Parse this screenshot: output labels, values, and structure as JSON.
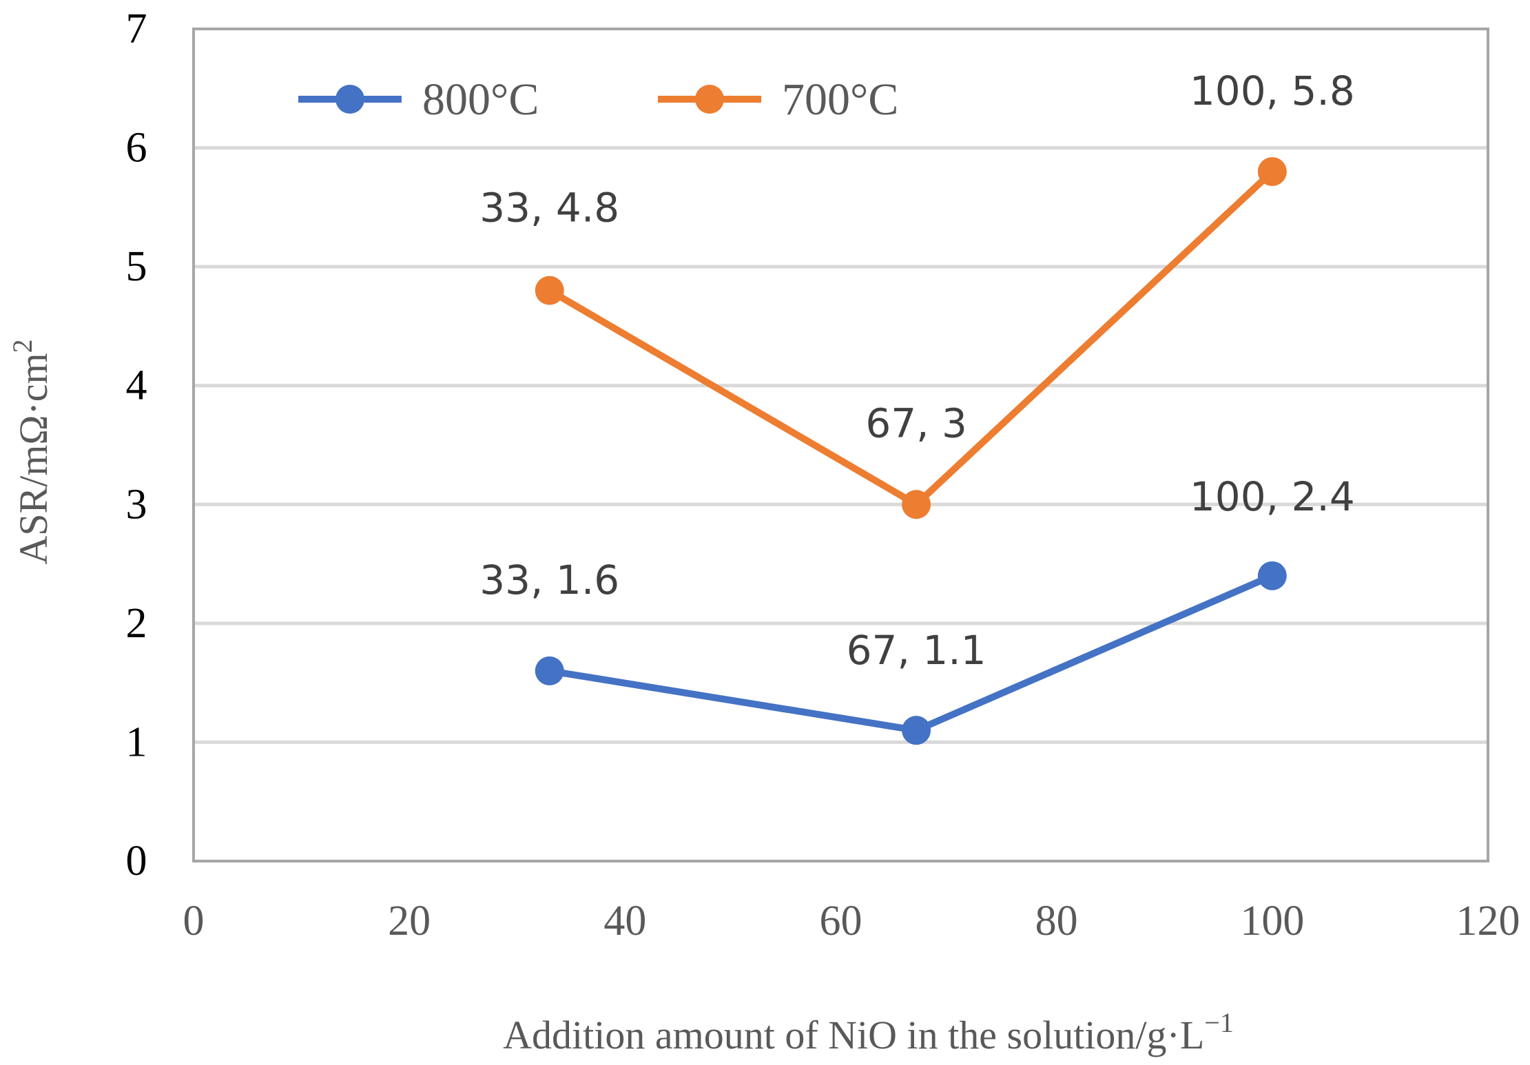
{
  "chart_data": {
    "type": "line",
    "title": "",
    "xlabel": "Addition amount of NiO in the solution/g·L",
    "xlabel_sup": "−1",
    "ylabel": "ASR/mΩ·cm",
    "ylabel_sup": "2",
    "xlim": [
      0,
      120
    ],
    "ylim": [
      0,
      7
    ],
    "x_ticks": [
      "0",
      "20",
      "40",
      "60",
      "80",
      "100",
      "120"
    ],
    "y_ticks": [
      "0",
      "1",
      "2",
      "3",
      "4",
      "5",
      "6",
      "7"
    ],
    "grid": "horizontal",
    "legend_position": "top-left",
    "series": [
      {
        "name": "800°C",
        "color": "#4472C4",
        "x": [
          33,
          67,
          100
        ],
        "values": [
          1.6,
          1.1,
          2.4
        ],
        "labels": [
          "33, 1.6",
          "67, 1.1",
          "100, 2.4"
        ]
      },
      {
        "name": "700°C",
        "color": "#ED7D31",
        "x": [
          33,
          67,
          100
        ],
        "values": [
          4.8,
          3,
          5.8
        ],
        "labels": [
          "33, 4.8",
          "67, 3",
          "100, 5.8"
        ]
      }
    ]
  }
}
